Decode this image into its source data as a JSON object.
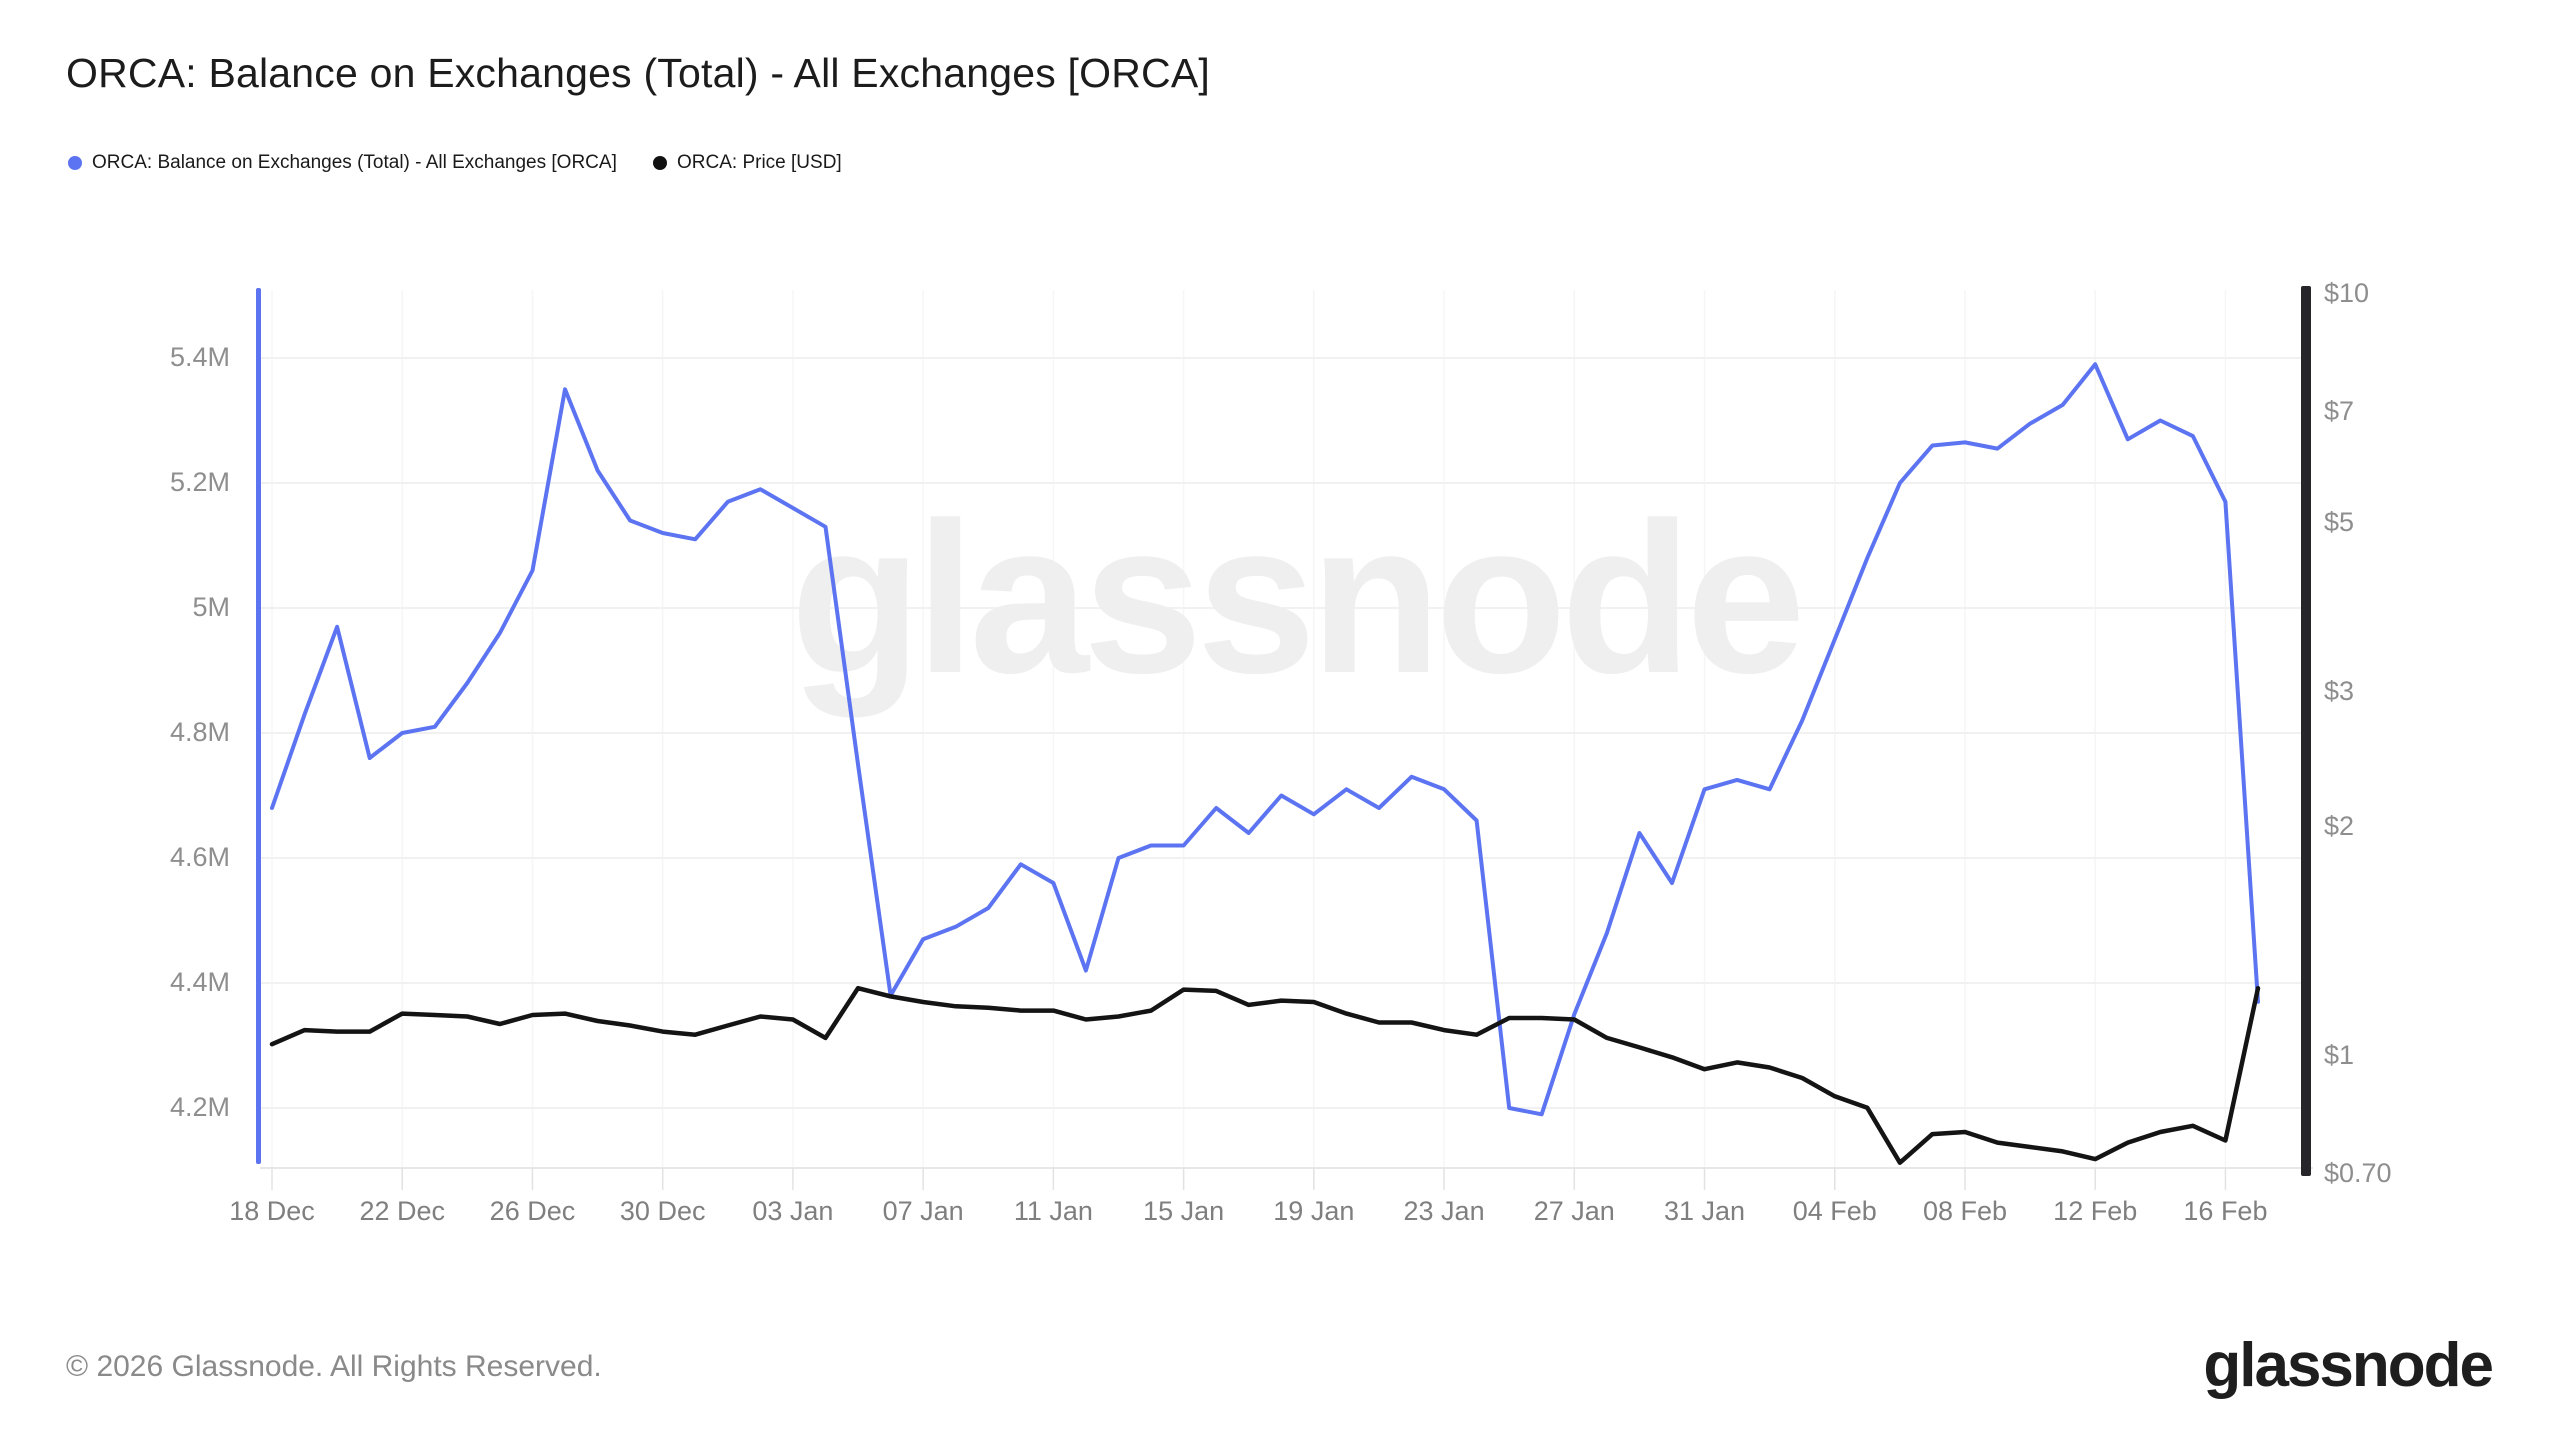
{
  "title": "ORCA: Balance on Exchanges (Total) - All Exchanges [ORCA]",
  "legend": {
    "items": [
      {
        "label": "ORCA: Balance on Exchanges (Total) - All Exchanges [ORCA]",
        "color": "#5c74f1"
      },
      {
        "label": "ORCA: Price [USD]",
        "color": "#111111"
      }
    ]
  },
  "watermark_text": "glassnode",
  "footer": {
    "copyright": "© 2026 Glassnode. All Rights Reserved.",
    "brand_logo_text": "glassnode"
  },
  "colors": {
    "balance_line": "#5c74f1",
    "price_line": "#141414",
    "grid_horizontal": "#f1f1f1",
    "grid_vertical": "#f6f6f6",
    "axis_text": "#8e8e8e",
    "right_axis_bar": "#26262a",
    "watermark": "#efefef"
  },
  "chart_data": {
    "type": "line",
    "title": "ORCA: Balance on Exchanges (Total) - All Exchanges [ORCA]",
    "grid": true,
    "legend_position": "top-left",
    "x": {
      "dates": [
        "18 Dec",
        "19 Dec",
        "20 Dec",
        "21 Dec",
        "22 Dec",
        "23 Dec",
        "24 Dec",
        "25 Dec",
        "26 Dec",
        "27 Dec",
        "28 Dec",
        "29 Dec",
        "30 Dec",
        "31 Dec",
        "01 Jan",
        "02 Jan",
        "03 Jan",
        "04 Jan",
        "05 Jan",
        "06 Jan",
        "07 Jan",
        "08 Jan",
        "09 Jan",
        "10 Jan",
        "11 Jan",
        "12 Jan",
        "13 Jan",
        "14 Jan",
        "15 Jan",
        "16 Jan",
        "17 Jan",
        "18 Jan",
        "19 Jan",
        "20 Jan",
        "21 Jan",
        "22 Jan",
        "23 Jan",
        "24 Jan",
        "25 Jan",
        "26 Jan",
        "27 Jan",
        "28 Jan",
        "29 Jan",
        "30 Jan",
        "31 Jan",
        "01 Feb",
        "02 Feb",
        "03 Feb",
        "04 Feb",
        "05 Feb",
        "06 Feb",
        "07 Feb",
        "08 Feb",
        "09 Feb",
        "10 Feb",
        "11 Feb",
        "12 Feb",
        "13 Feb",
        "14 Feb",
        "15 Feb",
        "16 Feb",
        "17 Feb"
      ],
      "tick_labels": [
        "18 Dec",
        "22 Dec",
        "26 Dec",
        "30 Dec",
        "03 Jan",
        "07 Jan",
        "11 Jan",
        "15 Jan",
        "19 Jan",
        "23 Jan",
        "27 Jan",
        "31 Jan",
        "04 Feb",
        "08 Feb",
        "12 Feb",
        "16 Feb"
      ],
      "tick_every_days": 4
    },
    "left_axis": {
      "scale": "linear",
      "unit": "ORCA",
      "ticks": [
        {
          "label": "5.4M",
          "value": 5.4
        },
        {
          "label": "5.2M",
          "value": 5.2
        },
        {
          "label": "5M",
          "value": 5.0
        },
        {
          "label": "4.8M",
          "value": 4.8
        },
        {
          "label": "4.6M",
          "value": 4.6
        },
        {
          "label": "4.4M",
          "value": 4.4
        },
        {
          "label": "4.2M",
          "value": 4.2
        }
      ]
    },
    "right_axis": {
      "scale": "log",
      "unit": "USD",
      "ticks": [
        {
          "label": "$10",
          "value": 10
        },
        {
          "label": "$7",
          "value": 7
        },
        {
          "label": "$5",
          "value": 5
        },
        {
          "label": "$3",
          "value": 3
        },
        {
          "label": "$2",
          "value": 2
        },
        {
          "label": "$1",
          "value": 1
        },
        {
          "label": "$0.70",
          "value": 0.7
        }
      ]
    },
    "series": [
      {
        "name": "ORCA: Balance on Exchanges (Total) - All Exchanges [ORCA]",
        "axis": "left",
        "unit": "ORCA (millions)",
        "color": "#5c74f1",
        "values": [
          4.68,
          4.83,
          4.97,
          4.76,
          4.8,
          4.81,
          4.88,
          4.96,
          5.06,
          5.35,
          5.22,
          5.14,
          5.12,
          5.11,
          5.17,
          5.19,
          5.16,
          5.13,
          4.75,
          4.38,
          4.47,
          4.49,
          4.52,
          4.59,
          4.56,
          4.42,
          4.6,
          4.62,
          4.62,
          4.68,
          4.64,
          4.7,
          4.67,
          4.71,
          4.68,
          4.73,
          4.71,
          4.66,
          4.2,
          4.19,
          4.35,
          4.48,
          4.64,
          4.56,
          4.71,
          4.725,
          4.71,
          4.82,
          4.95,
          5.08,
          5.2,
          5.26,
          5.265,
          5.255,
          5.295,
          5.325,
          5.39,
          5.27,
          5.3,
          5.275,
          5.17,
          4.37
        ]
      },
      {
        "name": "ORCA: Price [USD]",
        "axis": "right",
        "unit": "USD",
        "color": "#141414",
        "values": [
          1.03,
          1.075,
          1.07,
          1.07,
          1.13,
          1.125,
          1.12,
          1.095,
          1.125,
          1.13,
          1.105,
          1.09,
          1.07,
          1.06,
          1.09,
          1.12,
          1.11,
          1.05,
          1.22,
          1.19,
          1.17,
          1.155,
          1.15,
          1.14,
          1.14,
          1.11,
          1.12,
          1.14,
          1.215,
          1.21,
          1.16,
          1.175,
          1.17,
          1.13,
          1.1,
          1.1,
          1.075,
          1.06,
          1.115,
          1.115,
          1.11,
          1.05,
          1.02,
          0.99,
          0.955,
          0.975,
          0.96,
          0.93,
          0.88,
          0.85,
          0.72,
          0.785,
          0.79,
          0.765,
          0.755,
          0.745,
          0.728,
          0.765,
          0.79,
          0.805,
          0.77,
          1.22
        ]
      }
    ]
  }
}
